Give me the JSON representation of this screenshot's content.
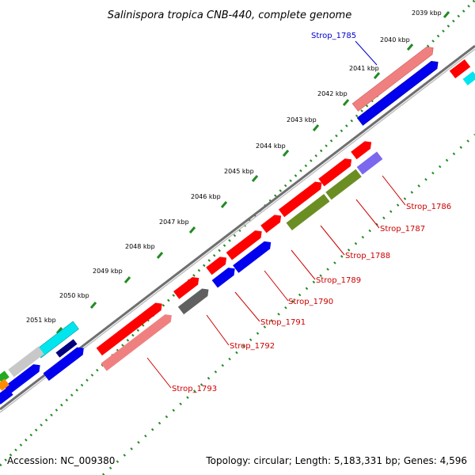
{
  "title": "Salinispora tropica CNB-440, complete genome",
  "footer": {
    "accession": "Accession: NC_009380",
    "topology": "Topology: circular; Length: 5,183,331 bp; Genes: 4,596"
  },
  "kbp_labels": [
    "2039 kbp",
    "2040 kbp",
    "2041 kbp",
    "2042 kbp",
    "2043 kbp",
    "2044 kbp",
    "2045 kbp",
    "2046 kbp",
    "2047 kbp",
    "2048 kbp",
    "2049 kbp",
    "2050 kbp",
    "2051 kbp"
  ],
  "gene_labels": {
    "strop_1785": "Strop_1785",
    "strop_1786": "Strop_1786",
    "strop_1787": "Strop_1787",
    "strop_1788": "Strop_1788",
    "strop_1789": "Strop_1789",
    "strop_1790": "Strop_1790",
    "strop_1791": "Strop_1791",
    "strop_1792": "Strop_1792",
    "strop_1793": "Strop_1793"
  },
  "colors": {
    "red": "#ff0000",
    "pink": "#f08080",
    "blue": "#0000ee",
    "olive": "#6b8e23",
    "gray": "#606060",
    "lavender": "#7b68ee",
    "cyan": "#00e5ee",
    "orange": "#ff8c00",
    "green": "#22aa22",
    "backbone": "#808080",
    "ticks": "#228b22"
  }
}
